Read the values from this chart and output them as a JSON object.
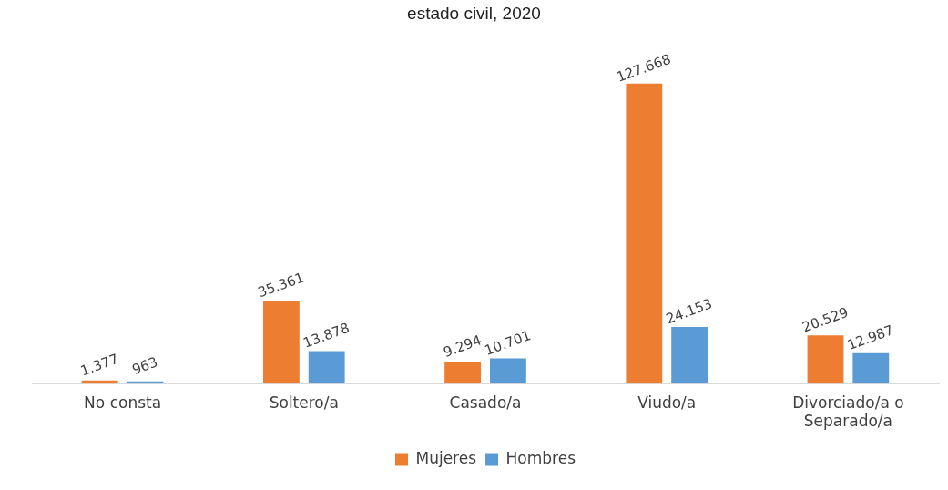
{
  "chart_data": {
    "type": "bar",
    "title": "estado civil, 2020",
    "categories": [
      "No consta",
      "Soltero/a",
      "Casado/a",
      "Viudo/a",
      "Divorciado/a o Separado/a"
    ],
    "series": [
      {
        "name": "Mujeres",
        "color": "#ed7d31",
        "values": [
          1377,
          35361,
          9294,
          127668,
          20529
        ],
        "value_labels": [
          "1.377",
          "35.361",
          "9.294",
          "127.668",
          "20.529"
        ]
      },
      {
        "name": "Hombres",
        "color": "#5b9bd5",
        "values": [
          963,
          13878,
          10701,
          24153,
          12987
        ],
        "value_labels": [
          "963",
          "13.878",
          "10.701",
          "24.153",
          "12.987"
        ]
      }
    ],
    "tick_labels": "x",
    "grid": false,
    "legend": "bottom"
  }
}
